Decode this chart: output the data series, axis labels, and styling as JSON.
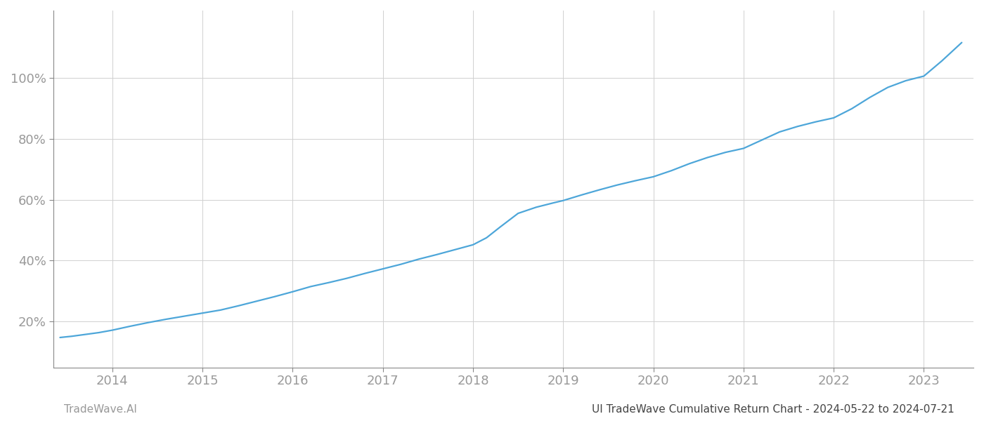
{
  "x_years": [
    2013.42,
    2013.55,
    2013.7,
    2013.85,
    2014.0,
    2014.2,
    2014.4,
    2014.6,
    2014.8,
    2015.0,
    2015.2,
    2015.4,
    2015.6,
    2015.8,
    2016.0,
    2016.2,
    2016.4,
    2016.6,
    2016.8,
    2017.0,
    2017.2,
    2017.4,
    2017.6,
    2017.8,
    2018.0,
    2018.15,
    2018.3,
    2018.5,
    2018.7,
    2018.9,
    2019.0,
    2019.2,
    2019.4,
    2019.6,
    2019.8,
    2020.0,
    2020.2,
    2020.4,
    2020.6,
    2020.8,
    2021.0,
    2021.2,
    2021.4,
    2021.6,
    2021.8,
    2022.0,
    2022.2,
    2022.4,
    2022.6,
    2022.8,
    2023.0,
    2023.2,
    2023.42
  ],
  "y_values": [
    0.148,
    0.152,
    0.158,
    0.164,
    0.172,
    0.185,
    0.197,
    0.208,
    0.218,
    0.228,
    0.238,
    0.252,
    0.267,
    0.282,
    0.298,
    0.315,
    0.328,
    0.342,
    0.358,
    0.373,
    0.388,
    0.405,
    0.42,
    0.436,
    0.452,
    0.475,
    0.51,
    0.555,
    0.575,
    0.59,
    0.597,
    0.615,
    0.632,
    0.648,
    0.662,
    0.675,
    0.695,
    0.718,
    0.738,
    0.755,
    0.768,
    0.795,
    0.822,
    0.84,
    0.855,
    0.868,
    0.898,
    0.935,
    0.968,
    0.99,
    1.005,
    1.055,
    1.115
  ],
  "line_color": "#4da6d9",
  "line_width": 1.6,
  "background_color": "#ffffff",
  "grid_color": "#d0d0d0",
  "tick_color": "#999999",
  "x_ticks": [
    2014,
    2015,
    2016,
    2017,
    2018,
    2019,
    2020,
    2021,
    2022,
    2023
  ],
  "y_ticks": [
    0.2,
    0.4,
    0.6,
    0.8,
    1.0
  ],
  "y_tick_labels": [
    "20%",
    "40%",
    "60%",
    "80%",
    "100%"
  ],
  "xlim": [
    2013.35,
    2023.55
  ],
  "ylim": [
    0.05,
    1.22
  ],
  "footer_left": "TradeWave.AI",
  "footer_right": "UI TradeWave Cumulative Return Chart - 2024-05-22 to 2024-07-21",
  "footer_fontsize": 11,
  "tick_fontsize": 13,
  "spine_color": "#888888"
}
